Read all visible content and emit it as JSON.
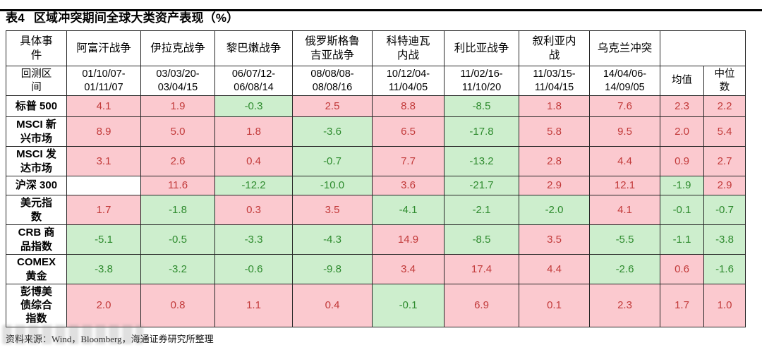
{
  "title": {
    "tag": "表4",
    "text": "区域冲突期间全球大类资产表现（%）"
  },
  "table": {
    "corner_top": "具体事\n件",
    "corner_bottom": "回测区\n间",
    "events": [
      "阿富汗战争",
      "伊拉克战争",
      "黎巴嫩战争",
      "俄罗斯格鲁\n吉亚战争",
      "科特迪瓦\n内战",
      "利比亚战争",
      "叙利亚内\n战",
      "乌克兰冲突"
    ],
    "periods": [
      "01/10/07-\n01/11/07",
      "03/03/20-\n03/04/15",
      "06/07/12-\n06/08/14",
      "08/08/08-\n08/08/16",
      "10/12/04-\n11/04/05",
      "11/02/16-\n11/10/20",
      "11/03/15-\n11/04/15",
      "14/04/06-\n14/09/05"
    ],
    "stat_headers": [
      "均值",
      "中位\n数"
    ],
    "rows": [
      {
        "label": "标普 500",
        "values": [
          "4.1",
          "1.9",
          "-0.3",
          "2.5",
          "8.8",
          "-8.5",
          "1.8",
          "7.6"
        ],
        "mean": "2.3",
        "median": "2.2"
      },
      {
        "label": "MSCI 新\n兴市场",
        "values": [
          "8.9",
          "5.0",
          "1.8",
          "-3.6",
          "6.5",
          "-17.8",
          "5.8",
          "9.5"
        ],
        "mean": "2.0",
        "median": "5.4"
      },
      {
        "label": "MSCI 发\n达市场",
        "values": [
          "3.1",
          "2.6",
          "0.4",
          "-0.7",
          "7.7",
          "-13.2",
          "2.8",
          "4.4"
        ],
        "mean": "0.9",
        "median": "2.7"
      },
      {
        "label": "沪深 300",
        "values": [
          "",
          "11.6",
          "-12.2",
          "-10.0",
          "3.6",
          "-21.7",
          "2.9",
          "12.1"
        ],
        "mean": "-1.9",
        "median": "2.9"
      },
      {
        "label": "美元指\n数",
        "values": [
          "1.7",
          "-1.8",
          "0.3",
          "3.5",
          "-4.1",
          "-2.1",
          "-2.0",
          "4.1"
        ],
        "mean": "-0.1",
        "median": "-0.7"
      },
      {
        "label": "CRB 商\n品指数",
        "values": [
          "-5.1",
          "-0.5",
          "-3.3",
          "-4.3",
          "14.9",
          "-8.5",
          "3.5",
          "-5.5"
        ],
        "mean": "-1.1",
        "median": "-3.8"
      },
      {
        "label": "COMEX\n黄金",
        "values": [
          "-3.8",
          "-3.2",
          "-0.6",
          "-9.8",
          "3.4",
          "17.4",
          "4.4",
          "-2.6"
        ],
        "mean": "0.6",
        "median": "-1.6"
      },
      {
        "label": "彭博美\n债综合\n指数",
        "values": [
          "2.0",
          "0.8",
          "1.1",
          "0.4",
          "-0.1",
          "6.9",
          "0.1",
          "2.3"
        ],
        "mean": "1.7",
        "median": "1.0"
      }
    ]
  },
  "footer": {
    "source": "资料来源：Wind，Bloomberg，海通证券研究所整理"
  },
  "colors": {
    "positive_bg": "#fbc9cf",
    "positive_text": "#c23a3a",
    "negative_bg": "#cdeecd",
    "negative_text": "#2e8b2e",
    "border": "#262626"
  }
}
